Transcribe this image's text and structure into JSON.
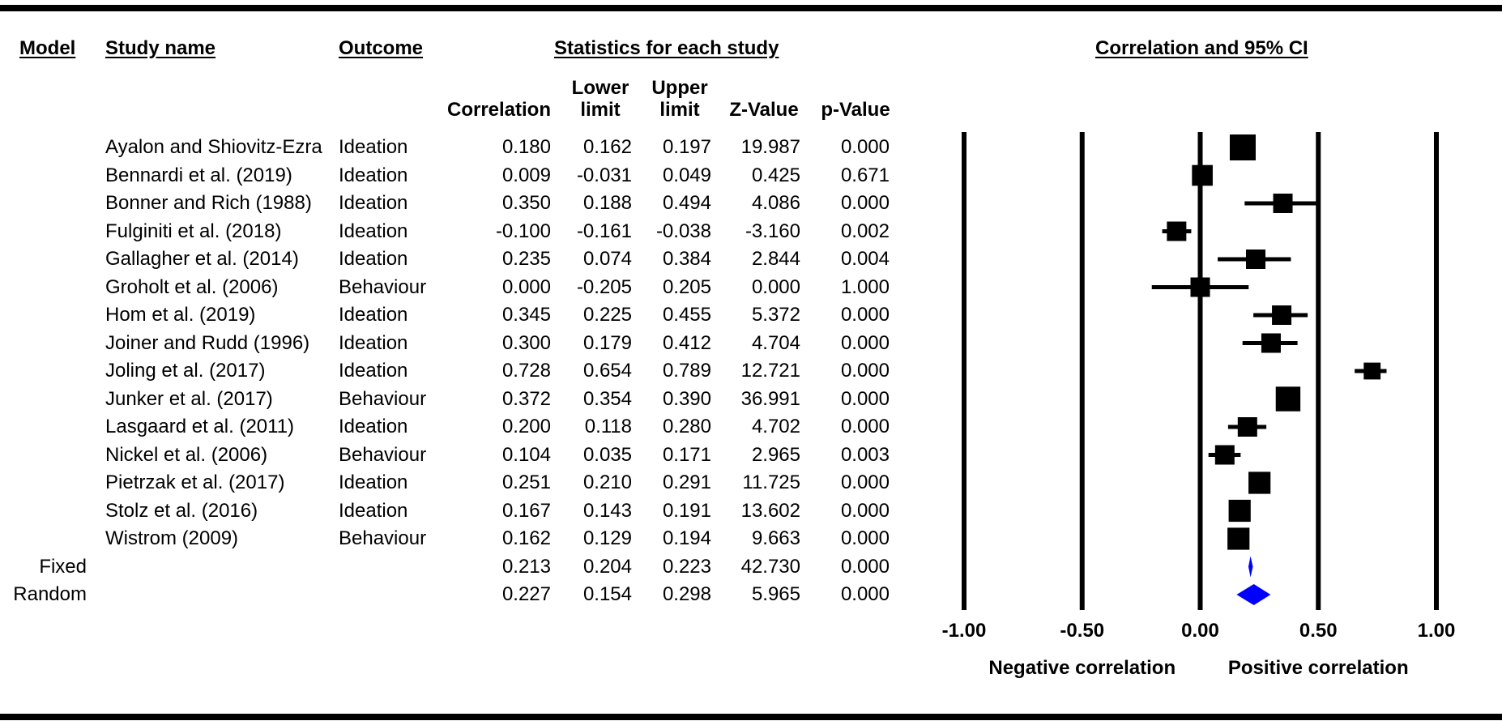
{
  "headers": {
    "model": "Model",
    "study_name": "Study name",
    "outcome": "Outcome",
    "statistics": "Statistics for each study",
    "plot_title": "Correlation and 95% CI"
  },
  "columns": {
    "correlation": "Correlation",
    "lower": [
      "Lower",
      "limit"
    ],
    "upper": [
      "Upper",
      "limit"
    ],
    "z": "Z-Value",
    "p": "p-Value"
  },
  "studies": [
    {
      "name": "Ayalon and Shiovitz-Ezra",
      "outcome": "Ideation",
      "correlation": "0.180",
      "lower": "0.162",
      "upper": "0.197",
      "z": "19.987",
      "p": "0.000"
    },
    {
      "name": "Bennardi et al. (2019)",
      "outcome": "Ideation",
      "correlation": "0.009",
      "lower": "-0.031",
      "upper": "0.049",
      "z": "0.425",
      "p": "0.671"
    },
    {
      "name": "Bonner and Rich (1988)",
      "outcome": "Ideation",
      "correlation": "0.350",
      "lower": "0.188",
      "upper": "0.494",
      "z": "4.086",
      "p": "0.000"
    },
    {
      "name": "Fulginiti et al. (2018)",
      "outcome": "Ideation",
      "correlation": "-0.100",
      "lower": "-0.161",
      "upper": "-0.038",
      "z": "-3.160",
      "p": "0.002"
    },
    {
      "name": "Gallagher et al. (2014)",
      "outcome": "Ideation",
      "correlation": "0.235",
      "lower": "0.074",
      "upper": "0.384",
      "z": "2.844",
      "p": "0.004"
    },
    {
      "name": "Groholt et al. (2006)",
      "outcome": "Behaviour",
      "correlation": "0.000",
      "lower": "-0.205",
      "upper": "0.205",
      "z": "0.000",
      "p": "1.000"
    },
    {
      "name": "Hom et al. (2019)",
      "outcome": "Ideation",
      "correlation": "0.345",
      "lower": "0.225",
      "upper": "0.455",
      "z": "5.372",
      "p": "0.000"
    },
    {
      "name": "Joiner and Rudd (1996)",
      "outcome": "Ideation",
      "correlation": "0.300",
      "lower": "0.179",
      "upper": "0.412",
      "z": "4.704",
      "p": "0.000"
    },
    {
      "name": "Joling et al. (2017)",
      "outcome": "Ideation",
      "correlation": "0.728",
      "lower": "0.654",
      "upper": "0.789",
      "z": "12.721",
      "p": "0.000"
    },
    {
      "name": "Junker et al. (2017)",
      "outcome": "Behaviour",
      "correlation": "0.372",
      "lower": "0.354",
      "upper": "0.390",
      "z": "36.991",
      "p": "0.000"
    },
    {
      "name": "Lasgaard et al. (2011)",
      "outcome": "Ideation",
      "correlation": "0.200",
      "lower": "0.118",
      "upper": "0.280",
      "z": "4.702",
      "p": "0.000"
    },
    {
      "name": "Nickel et al. (2006)",
      "outcome": "Behaviour",
      "correlation": "0.104",
      "lower": "0.035",
      "upper": "0.171",
      "z": "2.965",
      "p": "0.003"
    },
    {
      "name": "Pietrzak et al. (2017)",
      "outcome": "Ideation",
      "correlation": "0.251",
      "lower": "0.210",
      "upper": "0.291",
      "z": "11.725",
      "p": "0.000"
    },
    {
      "name": "Stolz et al. (2016)",
      "outcome": "Ideation",
      "correlation": "0.167",
      "lower": "0.143",
      "upper": "0.191",
      "z": "13.602",
      "p": "0.000"
    },
    {
      "name": "Wistrom (2009)",
      "outcome": "Behaviour",
      "correlation": "0.162",
      "lower": "0.129",
      "upper": "0.194",
      "z": "9.663",
      "p": "0.000"
    }
  ],
  "summaries": [
    {
      "model": "Fixed",
      "correlation": "0.213",
      "lower": "0.204",
      "upper": "0.223",
      "z": "42.730",
      "p": "0.000"
    },
    {
      "model": "Random",
      "correlation": "0.227",
      "lower": "0.154",
      "upper": "0.298",
      "z": "5.965",
      "p": "0.000"
    }
  ],
  "colors": {
    "marker": "#000000",
    "summary_diamond": "#0000ff",
    "rules": "#000000"
  },
  "chart_data": {
    "type": "forest",
    "title": "Correlation and 95% CI",
    "xlim": [
      -1.0,
      1.0
    ],
    "x_ticks": [
      "-1.00",
      "-0.50",
      "0.00",
      "0.50",
      "1.00"
    ],
    "x_tick_values": [
      -1.0,
      -0.5,
      0.0,
      0.5,
      1.0
    ],
    "left_label": "Negative correlation",
    "right_label": "Positive correlation",
    "marker_weights": [
      2.0,
      1.6,
      1.5,
      1.5,
      1.5,
      1.5,
      1.5,
      1.5,
      1.3,
      1.9,
      1.5,
      1.5,
      1.7,
      1.7,
      1.7
    ],
    "studies": [
      {
        "label": "Ayalon and Shiovitz-Ezra",
        "estimate": 0.18,
        "lower": 0.162,
        "upper": 0.197
      },
      {
        "label": "Bennardi et al. (2019)",
        "estimate": 0.009,
        "lower": -0.031,
        "upper": 0.049
      },
      {
        "label": "Bonner and Rich (1988)",
        "estimate": 0.35,
        "lower": 0.188,
        "upper": 0.494
      },
      {
        "label": "Fulginiti et al. (2018)",
        "estimate": -0.1,
        "lower": -0.161,
        "upper": -0.038
      },
      {
        "label": "Gallagher et al. (2014)",
        "estimate": 0.235,
        "lower": 0.074,
        "upper": 0.384
      },
      {
        "label": "Groholt et al. (2006)",
        "estimate": 0.0,
        "lower": -0.205,
        "upper": 0.205
      },
      {
        "label": "Hom et al. (2019)",
        "estimate": 0.345,
        "lower": 0.225,
        "upper": 0.455
      },
      {
        "label": "Joiner and Rudd (1996)",
        "estimate": 0.3,
        "lower": 0.179,
        "upper": 0.412
      },
      {
        "label": "Joling et al. (2017)",
        "estimate": 0.728,
        "lower": 0.654,
        "upper": 0.789
      },
      {
        "label": "Junker et al. (2017)",
        "estimate": 0.372,
        "lower": 0.354,
        "upper": 0.39
      },
      {
        "label": "Lasgaard et al. (2011)",
        "estimate": 0.2,
        "lower": 0.118,
        "upper": 0.28
      },
      {
        "label": "Nickel et al. (2006)",
        "estimate": 0.104,
        "lower": 0.035,
        "upper": 0.171
      },
      {
        "label": "Pietrzak et al. (2017)",
        "estimate": 0.251,
        "lower": 0.21,
        "upper": 0.291
      },
      {
        "label": "Stolz et al. (2016)",
        "estimate": 0.167,
        "lower": 0.143,
        "upper": 0.191
      },
      {
        "label": "Wistrom (2009)",
        "estimate": 0.162,
        "lower": 0.129,
        "upper": 0.194
      }
    ],
    "summary": [
      {
        "label": "Fixed",
        "estimate": 0.213,
        "lower": 0.204,
        "upper": 0.223
      },
      {
        "label": "Random",
        "estimate": 0.227,
        "lower": 0.154,
        "upper": 0.298
      }
    ]
  }
}
